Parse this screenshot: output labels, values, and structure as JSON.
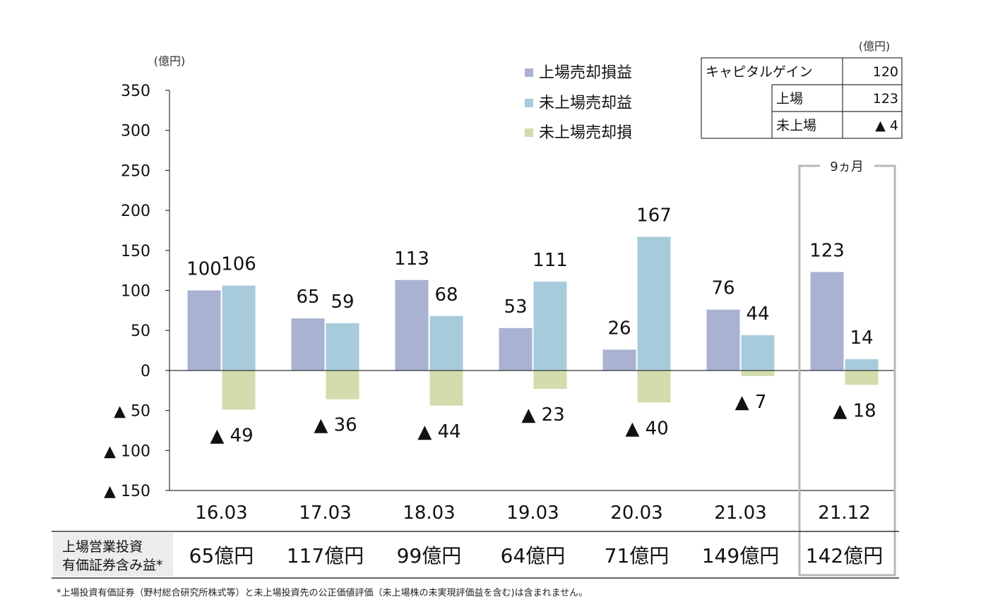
{
  "chart_data": {
    "type": "bar",
    "unit_label": "(億円)",
    "categories": [
      "16.03",
      "17.03",
      "18.03",
      "19.03",
      "20.03",
      "21.03",
      "21.12"
    ],
    "series": [
      {
        "name": "上場売却損益",
        "color": "#a9b2d1",
        "values": [
          100,
          65,
          113,
          53,
          26,
          76,
          123
        ]
      },
      {
        "name": "未上場売却益",
        "color": "#a8cbdc",
        "values": [
          106,
          59,
          68,
          111,
          167,
          44,
          14
        ]
      },
      {
        "name": "未上場売却損",
        "color": "#d3dcac",
        "values": [
          -49,
          -36,
          -44,
          -23,
          -40,
          -7,
          -18
        ]
      }
    ],
    "data_labels": {
      "listed": [
        "100",
        "65",
        "113",
        "53",
        "26",
        "76",
        "123"
      ],
      "unlisted_gain": [
        "106",
        "59",
        "68",
        "111",
        "167",
        "44",
        "14"
      ],
      "unlisted_loss": [
        "▲ 49",
        "▲ 36",
        "▲ 44",
        "▲ 23",
        "▲ 40",
        "▲ 7",
        "▲ 18"
      ]
    },
    "ylim": [
      -150,
      350
    ],
    "yticks": [
      350,
      300,
      250,
      200,
      150,
      100,
      50,
      0,
      -50,
      -100,
      -150
    ],
    "ytick_labels": [
      "350",
      "300",
      "250",
      "200",
      "150",
      "100",
      "50",
      "0",
      "▲ 50",
      "▲ 100",
      "▲ 150"
    ],
    "highlight": {
      "category": "21.12",
      "label": "9ヵ月"
    }
  },
  "summary_table": {
    "unit": "(億円)",
    "rows": [
      {
        "label": "キャピタルゲイン",
        "value": "120"
      },
      {
        "label": "上場",
        "value": "123"
      },
      {
        "label": "未上場",
        "value": "▲ 4"
      }
    ]
  },
  "bottom_row": {
    "label_line1": "上場営業投資",
    "label_line2": "有価証券含み益*",
    "values": [
      "65億円",
      "117億円",
      "99億円",
      "64億円",
      "71億円",
      "149億円",
      "142億円"
    ]
  },
  "footnote": "*上場投資有価証券（野村総合研究所株式等）と未上場投資先の公正価値評価（未上場株の未実現評価益を含む)は含まれません。"
}
